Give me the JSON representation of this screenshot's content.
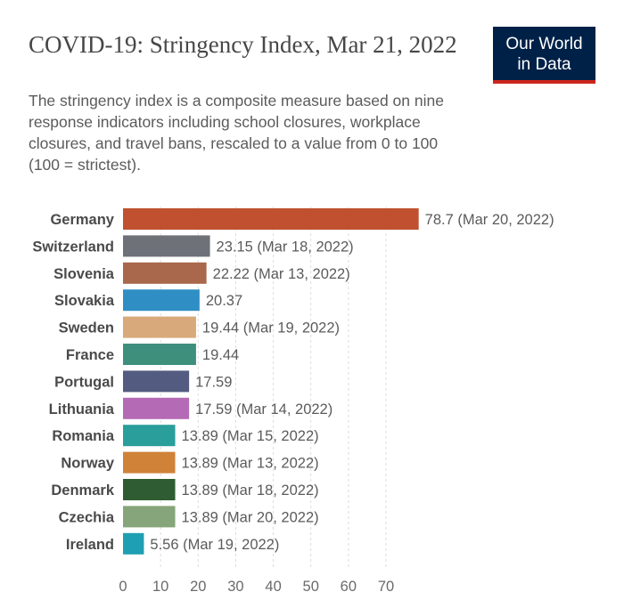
{
  "header": {
    "title": "COVID-19: Stringency Index, Mar 21, 2022",
    "subtitle": "The stringency index is a composite measure based on nine response indicators including school closures, workplace closures, and travel bans, rescaled to a value from 0 to 100 (100 = strictest).",
    "logo_line1": "Our World",
    "logo_line2": "in Data"
  },
  "chart_data": {
    "type": "bar",
    "orientation": "horizontal",
    "title": "COVID-19: Stringency Index, Mar 21, 2022",
    "categories": [
      "Germany",
      "Switzerland",
      "Slovenia",
      "Slovakia",
      "Sweden",
      "France",
      "Portugal",
      "Lithuania",
      "Romania",
      "Norway",
      "Denmark",
      "Czechia",
      "Ireland"
    ],
    "values": [
      78.7,
      23.15,
      22.22,
      20.37,
      19.44,
      19.44,
      17.59,
      17.59,
      13.89,
      13.89,
      13.89,
      13.89,
      5.56
    ],
    "labels": [
      "78.7 (Mar 20, 2022)",
      "23.15 (Mar 18, 2022)",
      "22.22 (Mar 13, 2022)",
      "20.37",
      "19.44 (Mar 19, 2022)",
      "19.44",
      "17.59",
      "17.59 (Mar 14, 2022)",
      "13.89 (Mar 15, 2022)",
      "13.89 (Mar 13, 2022)",
      "13.89 (Mar 18, 2022)",
      "13.89 (Mar 20, 2022)",
      "5.56 (Mar 19, 2022)"
    ],
    "colors": [
      "#c0502f",
      "#6f7179",
      "#a9674b",
      "#2f8fc4",
      "#d8a97a",
      "#3f8f7d",
      "#535b80",
      "#b46ab4",
      "#2a9e9a",
      "#cf8238",
      "#2f5c32",
      "#86a57a",
      "#1f9fb2"
    ],
    "xticks": [
      0,
      10,
      20,
      30,
      40,
      50,
      60,
      70
    ],
    "xlim": [
      0,
      80
    ],
    "grid": true
  }
}
